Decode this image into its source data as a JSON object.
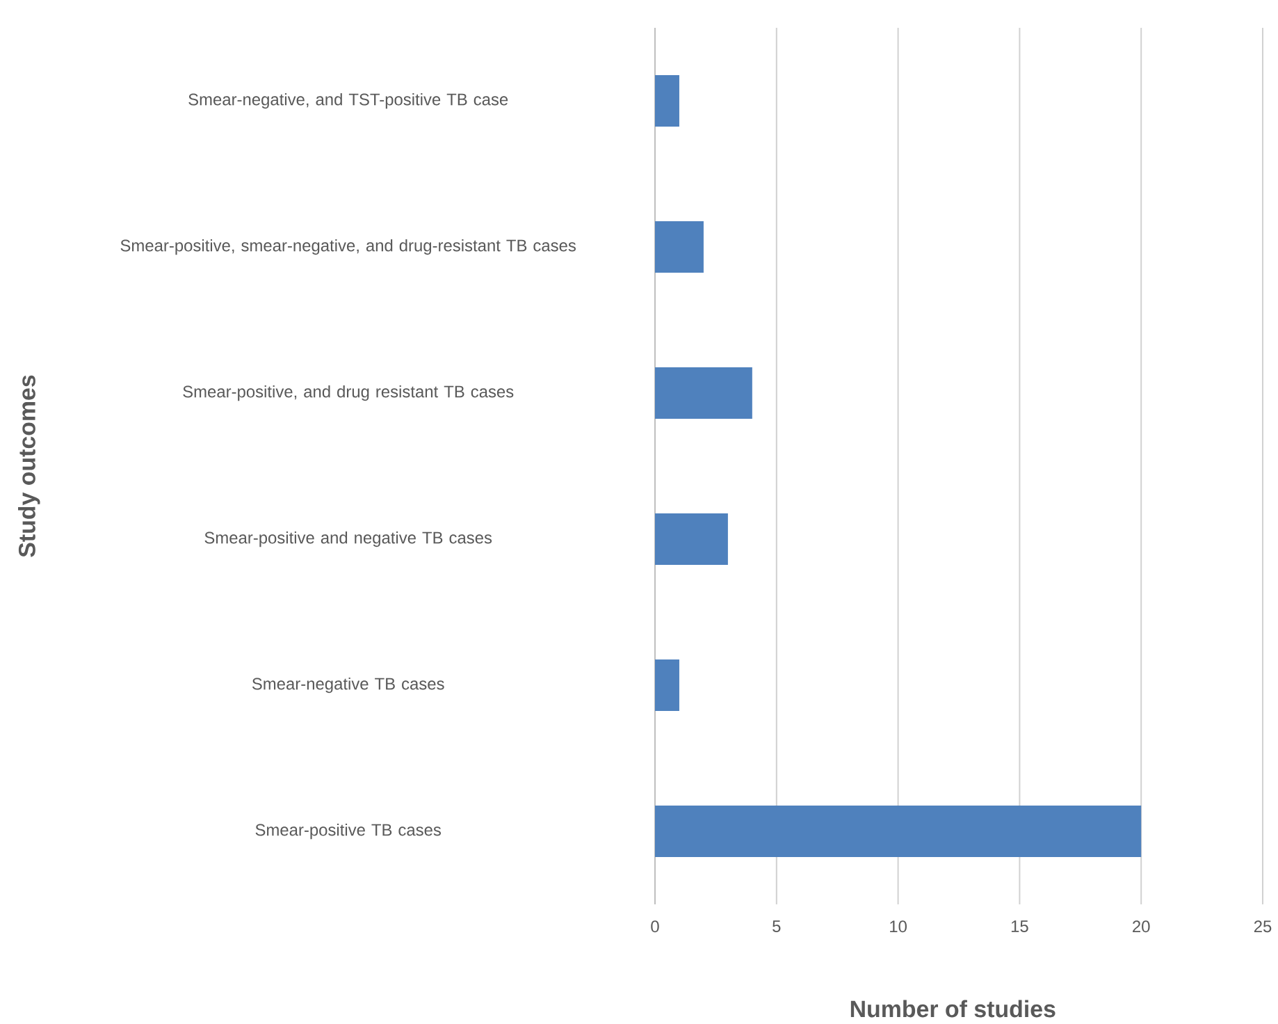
{
  "chart_data": {
    "type": "bar",
    "orientation": "horizontal",
    "xlabel": "Number of studies",
    "ylabel": "Study outcomes",
    "categories": [
      "Smear-negative, and TST-positive TB case",
      "Smear-positive, smear-negative, and drug-resistant TB cases",
      "Smear-positive, and drug resistant TB cases",
      "Smear-positive and negative TB cases",
      "Smear-negative TB cases",
      "Smear-positive TB cases"
    ],
    "values": [
      1,
      2,
      4,
      3,
      1,
      20
    ],
    "color": "#4f81bd",
    "xlim": [
      0,
      25
    ],
    "xticks": [
      0,
      5,
      10,
      15,
      20,
      25
    ],
    "grid": "x"
  }
}
